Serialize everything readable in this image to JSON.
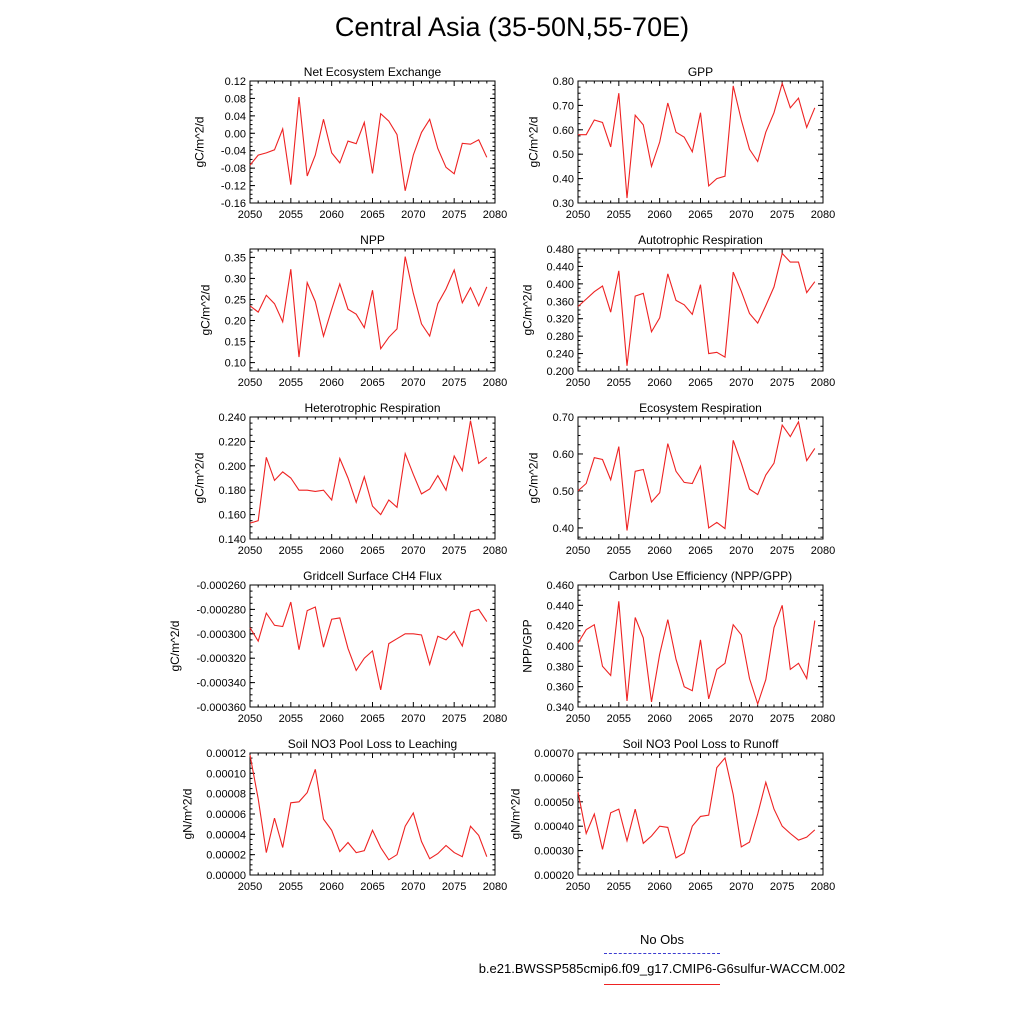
{
  "title": "Central Asia (35-50N,55-70E)",
  "legend": {
    "obs_label": "No Obs",
    "run_label": "b.e21.BWSSP585cmip6.f09_g17.CMIP6-G6sulfur-WACCM.002",
    "obs_color": "#3b3bd1",
    "model_color": "#ee2222"
  },
  "chart_data": [
    {
      "type": "line",
      "title": "Net Ecosystem Exchange",
      "ylabel": "gC/m^2/d",
      "xlim": [
        2050,
        2080
      ],
      "ylim": [
        -0.16,
        0.12
      ],
      "xticks": [
        2050,
        2055,
        2060,
        2065,
        2070,
        2075,
        2080
      ],
      "xtick_labels": [
        "2050",
        "2055",
        "2060",
        "2065",
        "2070",
        "2075",
        "2080"
      ],
      "yticks": [
        -0.16,
        -0.12,
        -0.08,
        -0.04,
        0.0,
        0.04,
        0.08,
        0.12
      ],
      "ytick_labels": [
        "-0.16",
        "-0.12",
        "-0.08",
        "-0.04",
        "0.00",
        "0.04",
        "0.08",
        "0.12"
      ],
      "x": [
        2050,
        2051,
        2052,
        2053,
        2054,
        2055,
        2056,
        2057,
        2058,
        2059,
        2060,
        2061,
        2062,
        2063,
        2064,
        2065,
        2066,
        2067,
        2068,
        2069,
        2070,
        2071,
        2072,
        2073,
        2074,
        2075,
        2076,
        2077,
        2078,
        2079
      ],
      "values": [
        -0.073,
        -0.05,
        -0.045,
        -0.038,
        0.01,
        -0.118,
        0.083,
        -0.098,
        -0.05,
        0.032,
        -0.045,
        -0.068,
        -0.018,
        -0.024,
        0.025,
        -0.092,
        0.045,
        0.028,
        -0.003,
        -0.132,
        -0.05,
        0.002,
        0.032,
        -0.035,
        -0.078,
        -0.093,
        -0.023,
        -0.025,
        -0.015,
        -0.055
      ]
    },
    {
      "type": "line",
      "title": "GPP",
      "ylabel": "gC/m^2/d",
      "xlim": [
        2050,
        2080
      ],
      "ylim": [
        0.3,
        0.8
      ],
      "xticks": [
        2050,
        2055,
        2060,
        2065,
        2070,
        2075,
        2080
      ],
      "xtick_labels": [
        "2050",
        "2055",
        "2060",
        "2065",
        "2070",
        "2075",
        "2080"
      ],
      "yticks": [
        0.3,
        0.4,
        0.5,
        0.6,
        0.7,
        0.8
      ],
      "ytick_labels": [
        "0.30",
        "0.40",
        "0.50",
        "0.60",
        "0.70",
        "0.80"
      ],
      "x": [
        2050,
        2051,
        2052,
        2053,
        2054,
        2055,
        2056,
        2057,
        2058,
        2059,
        2060,
        2061,
        2062,
        2063,
        2064,
        2065,
        2066,
        2067,
        2068,
        2069,
        2070,
        2071,
        2072,
        2073,
        2074,
        2075,
        2076,
        2077,
        2078,
        2079
      ],
      "values": [
        0.58,
        0.58,
        0.64,
        0.63,
        0.53,
        0.75,
        0.32,
        0.66,
        0.62,
        0.45,
        0.55,
        0.71,
        0.59,
        0.57,
        0.51,
        0.67,
        0.37,
        0.4,
        0.41,
        0.78,
        0.64,
        0.52,
        0.47,
        0.59,
        0.67,
        0.79,
        0.69,
        0.73,
        0.61,
        0.69
      ]
    },
    {
      "type": "line",
      "title": "NPP",
      "ylabel": "gC/m^2/d",
      "xlim": [
        2050,
        2080
      ],
      "ylim": [
        0.08,
        0.37
      ],
      "xticks": [
        2050,
        2055,
        2060,
        2065,
        2070,
        2075,
        2080
      ],
      "xtick_labels": [
        "2050",
        "2055",
        "2060",
        "2065",
        "2070",
        "2075",
        "2080"
      ],
      "yticks": [
        0.1,
        0.15,
        0.2,
        0.25,
        0.3,
        0.35
      ],
      "ytick_labels": [
        "0.10",
        "0.15",
        "0.20",
        "0.25",
        "0.30",
        "0.35"
      ],
      "x": [
        2050,
        2051,
        2052,
        2053,
        2054,
        2055,
        2056,
        2057,
        2058,
        2059,
        2060,
        2061,
        2062,
        2063,
        2064,
        2065,
        2066,
        2067,
        2068,
        2069,
        2070,
        2071,
        2072,
        2073,
        2074,
        2075,
        2076,
        2077,
        2078,
        2079
      ],
      "values": [
        0.235,
        0.22,
        0.26,
        0.24,
        0.197,
        0.322,
        0.113,
        0.29,
        0.245,
        0.163,
        0.227,
        0.287,
        0.227,
        0.215,
        0.183,
        0.272,
        0.133,
        0.16,
        0.18,
        0.352,
        0.265,
        0.192,
        0.163,
        0.24,
        0.275,
        0.32,
        0.242,
        0.278,
        0.235,
        0.28
      ]
    },
    {
      "type": "line",
      "title": "Autotrophic Respiration",
      "ylabel": "gC/m^2/d",
      "xlim": [
        2050,
        2080
      ],
      "ylim": [
        0.2,
        0.48
      ],
      "xticks": [
        2050,
        2055,
        2060,
        2065,
        2070,
        2075,
        2080
      ],
      "xtick_labels": [
        "2050",
        "2055",
        "2060",
        "2065",
        "2070",
        "2075",
        "2080"
      ],
      "yticks": [
        0.2,
        0.24,
        0.28,
        0.32,
        0.36,
        0.4,
        0.44,
        0.48
      ],
      "ytick_labels": [
        "0.200",
        "0.240",
        "0.280",
        "0.320",
        "0.360",
        "0.400",
        "0.440",
        "0.480"
      ],
      "x": [
        2050,
        2051,
        2052,
        2053,
        2054,
        2055,
        2056,
        2057,
        2058,
        2059,
        2060,
        2061,
        2062,
        2063,
        2064,
        2065,
        2066,
        2067,
        2068,
        2069,
        2070,
        2071,
        2072,
        2073,
        2074,
        2075,
        2076,
        2077,
        2078,
        2079
      ],
      "values": [
        0.348,
        0.365,
        0.382,
        0.395,
        0.335,
        0.43,
        0.212,
        0.372,
        0.378,
        0.29,
        0.322,
        0.423,
        0.362,
        0.352,
        0.33,
        0.398,
        0.24,
        0.243,
        0.232,
        0.427,
        0.383,
        0.332,
        0.31,
        0.35,
        0.393,
        0.47,
        0.45,
        0.45,
        0.38,
        0.405
      ]
    },
    {
      "type": "line",
      "title": "Heterotrophic Respiration",
      "ylabel": "gC/m^2/d",
      "xlim": [
        2050,
        2080
      ],
      "ylim": [
        0.14,
        0.24
      ],
      "xticks": [
        2050,
        2055,
        2060,
        2065,
        2070,
        2075,
        2080
      ],
      "xtick_labels": [
        "2050",
        "2055",
        "2060",
        "2065",
        "2070",
        "2075",
        "2080"
      ],
      "yticks": [
        0.14,
        0.16,
        0.18,
        0.2,
        0.22,
        0.24
      ],
      "ytick_labels": [
        "0.140",
        "0.160",
        "0.180",
        "0.200",
        "0.220",
        "0.240"
      ],
      "x": [
        2050,
        2051,
        2052,
        2053,
        2054,
        2055,
        2056,
        2057,
        2058,
        2059,
        2060,
        2061,
        2062,
        2063,
        2064,
        2065,
        2066,
        2067,
        2068,
        2069,
        2070,
        2071,
        2072,
        2073,
        2074,
        2075,
        2076,
        2077,
        2078,
        2079
      ],
      "values": [
        0.153,
        0.155,
        0.207,
        0.188,
        0.195,
        0.19,
        0.18,
        0.18,
        0.179,
        0.18,
        0.172,
        0.206,
        0.19,
        0.17,
        0.191,
        0.167,
        0.16,
        0.172,
        0.166,
        0.21,
        0.193,
        0.177,
        0.181,
        0.192,
        0.18,
        0.208,
        0.196,
        0.237,
        0.202,
        0.207
      ]
    },
    {
      "type": "line",
      "title": "Ecosystem Respiration",
      "ylabel": "gC/m^2/d",
      "xlim": [
        2050,
        2080
      ],
      "ylim": [
        0.37,
        0.7
      ],
      "xticks": [
        2050,
        2055,
        2060,
        2065,
        2070,
        2075,
        2080
      ],
      "xtick_labels": [
        "2050",
        "2055",
        "2060",
        "2065",
        "2070",
        "2075",
        "2080"
      ],
      "yticks": [
        0.4,
        0.5,
        0.6,
        0.7
      ],
      "ytick_labels": [
        "0.40",
        "0.50",
        "0.60",
        "0.70"
      ],
      "x": [
        2050,
        2051,
        2052,
        2053,
        2054,
        2055,
        2056,
        2057,
        2058,
        2059,
        2060,
        2061,
        2062,
        2063,
        2064,
        2065,
        2066,
        2067,
        2068,
        2069,
        2070,
        2071,
        2072,
        2073,
        2074,
        2075,
        2076,
        2077,
        2078,
        2079
      ],
      "values": [
        0.5,
        0.52,
        0.59,
        0.585,
        0.53,
        0.62,
        0.393,
        0.553,
        0.558,
        0.47,
        0.495,
        0.628,
        0.553,
        0.523,
        0.52,
        0.567,
        0.4,
        0.415,
        0.398,
        0.637,
        0.575,
        0.505,
        0.49,
        0.543,
        0.575,
        0.678,
        0.647,
        0.687,
        0.582,
        0.615
      ]
    },
    {
      "type": "line",
      "title": "Gridcell Surface CH4 Flux",
      "ylabel": "gC/m^2/d",
      "xlim": [
        2050,
        2080
      ],
      "ylim": [
        -0.00036,
        -0.00026
      ],
      "xticks": [
        2050,
        2055,
        2060,
        2065,
        2070,
        2075,
        2080
      ],
      "xtick_labels": [
        "2050",
        "2055",
        "2060",
        "2065",
        "2070",
        "2075",
        "2080"
      ],
      "yticks": [
        -0.00036,
        -0.00034,
        -0.00032,
        -0.0003,
        -0.00028,
        -0.00026
      ],
      "ytick_labels": [
        "-0.000360",
        "-0.000340",
        "-0.000320",
        "-0.000300",
        "-0.000280",
        "-0.000260"
      ],
      "x": [
        2050,
        2051,
        2052,
        2053,
        2054,
        2055,
        2056,
        2057,
        2058,
        2059,
        2060,
        2061,
        2062,
        2063,
        2064,
        2065,
        2066,
        2067,
        2068,
        2069,
        2070,
        2071,
        2072,
        2073,
        2074,
        2075,
        2076,
        2077,
        2078,
        2079
      ],
      "values": [
        -0.000295,
        -0.000306,
        -0.000283,
        -0.000293,
        -0.000294,
        -0.000274,
        -0.000313,
        -0.000281,
        -0.000278,
        -0.000311,
        -0.000288,
        -0.000287,
        -0.000312,
        -0.00033,
        -0.00032,
        -0.000314,
        -0.000346,
        -0.000308,
        -0.000304,
        -0.0003,
        -0.0003,
        -0.000301,
        -0.000325,
        -0.000302,
        -0.000305,
        -0.000298,
        -0.00031,
        -0.000282,
        -0.00028,
        -0.00029
      ]
    },
    {
      "type": "line",
      "title": "Carbon Use Efficiency (NPP/GPP)",
      "ylabel": "NPP/GPP",
      "xlim": [
        2050,
        2080
      ],
      "ylim": [
        0.34,
        0.46
      ],
      "xticks": [
        2050,
        2055,
        2060,
        2065,
        2070,
        2075,
        2080
      ],
      "xtick_labels": [
        "2050",
        "2055",
        "2060",
        "2065",
        "2070",
        "2075",
        "2080"
      ],
      "yticks": [
        0.34,
        0.36,
        0.38,
        0.4,
        0.42,
        0.44,
        0.46
      ],
      "ytick_labels": [
        "0.340",
        "0.360",
        "0.380",
        "0.400",
        "0.420",
        "0.440",
        "0.460"
      ],
      "x": [
        2050,
        2051,
        2052,
        2053,
        2054,
        2055,
        2056,
        2057,
        2058,
        2059,
        2060,
        2061,
        2062,
        2063,
        2064,
        2065,
        2066,
        2067,
        2068,
        2069,
        2070,
        2071,
        2072,
        2073,
        2074,
        2075,
        2076,
        2077,
        2078,
        2079
      ],
      "values": [
        0.403,
        0.416,
        0.421,
        0.38,
        0.371,
        0.444,
        0.346,
        0.428,
        0.408,
        0.345,
        0.392,
        0.426,
        0.387,
        0.36,
        0.356,
        0.406,
        0.348,
        0.377,
        0.383,
        0.421,
        0.411,
        0.368,
        0.343,
        0.367,
        0.418,
        0.44,
        0.377,
        0.383,
        0.368,
        0.425
      ]
    },
    {
      "type": "line",
      "title": "Soil NO3 Pool Loss to Leaching",
      "ylabel": "gN/m^2/d",
      "xlim": [
        2050,
        2080
      ],
      "ylim": [
        0.0,
        0.00012
      ],
      "xticks": [
        2050,
        2055,
        2060,
        2065,
        2070,
        2075,
        2080
      ],
      "xtick_labels": [
        "2050",
        "2055",
        "2060",
        "2065",
        "2070",
        "2075",
        "2080"
      ],
      "yticks": [
        0.0,
        2e-05,
        4e-05,
        6e-05,
        8e-05,
        0.0001,
        0.00012
      ],
      "ytick_labels": [
        "0.00000",
        "0.00002",
        "0.00004",
        "0.00006",
        "0.00008",
        "0.00010",
        "0.00012"
      ],
      "x": [
        2050,
        2051,
        2052,
        2053,
        2054,
        2055,
        2056,
        2057,
        2058,
        2059,
        2060,
        2061,
        2062,
        2063,
        2064,
        2065,
        2066,
        2067,
        2068,
        2069,
        2070,
        2071,
        2072,
        2073,
        2074,
        2075,
        2076,
        2077,
        2078,
        2079
      ],
      "values": [
        0.000118,
        7.5e-05,
        2.2e-05,
        5.6e-05,
        2.7e-05,
        7.1e-05,
        7.2e-05,
        8.1e-05,
        0.000104,
        5.5e-05,
        4.4e-05,
        2.3e-05,
        3.2e-05,
        2.2e-05,
        2.4e-05,
        4.4e-05,
        2.7e-05,
        1.5e-05,
        2e-05,
        4.8e-05,
        6.1e-05,
        3.3e-05,
        1.6e-05,
        2.1e-05,
        2.9e-05,
        2.2e-05,
        1.8e-05,
        4.8e-05,
        3.9e-05,
        1.8e-05
      ]
    },
    {
      "type": "line",
      "title": "Soil NO3 Pool Loss to Runoff",
      "ylabel": "gN/m^2/d",
      "xlim": [
        2050,
        2080
      ],
      "ylim": [
        0.0002,
        0.0007
      ],
      "xticks": [
        2050,
        2055,
        2060,
        2065,
        2070,
        2075,
        2080
      ],
      "xtick_labels": [
        "2050",
        "2055",
        "2060",
        "2065",
        "2070",
        "2075",
        "2080"
      ],
      "yticks": [
        0.0002,
        0.0003,
        0.0004,
        0.0005,
        0.0006,
        0.0007
      ],
      "ytick_labels": [
        "0.00020",
        "0.00030",
        "0.00040",
        "0.00050",
        "0.00060",
        "0.00070"
      ],
      "x": [
        2050,
        2051,
        2052,
        2053,
        2054,
        2055,
        2056,
        2057,
        2058,
        2059,
        2060,
        2061,
        2062,
        2063,
        2064,
        2065,
        2066,
        2067,
        2068,
        2069,
        2070,
        2071,
        2072,
        2073,
        2074,
        2075,
        2076,
        2077,
        2078,
        2079
      ],
      "values": [
        0.00054,
        0.00037,
        0.00045,
        0.000305,
        0.000455,
        0.00047,
        0.00034,
        0.00047,
        0.00033,
        0.00036,
        0.0004,
        0.000395,
        0.00027,
        0.00029,
        0.0004,
        0.00044,
        0.000445,
        0.00064,
        0.00068,
        0.00053,
        0.000315,
        0.000335,
        0.00045,
        0.00058,
        0.00047,
        0.0004,
        0.00037,
        0.000343,
        0.000355,
        0.000385
      ]
    }
  ]
}
